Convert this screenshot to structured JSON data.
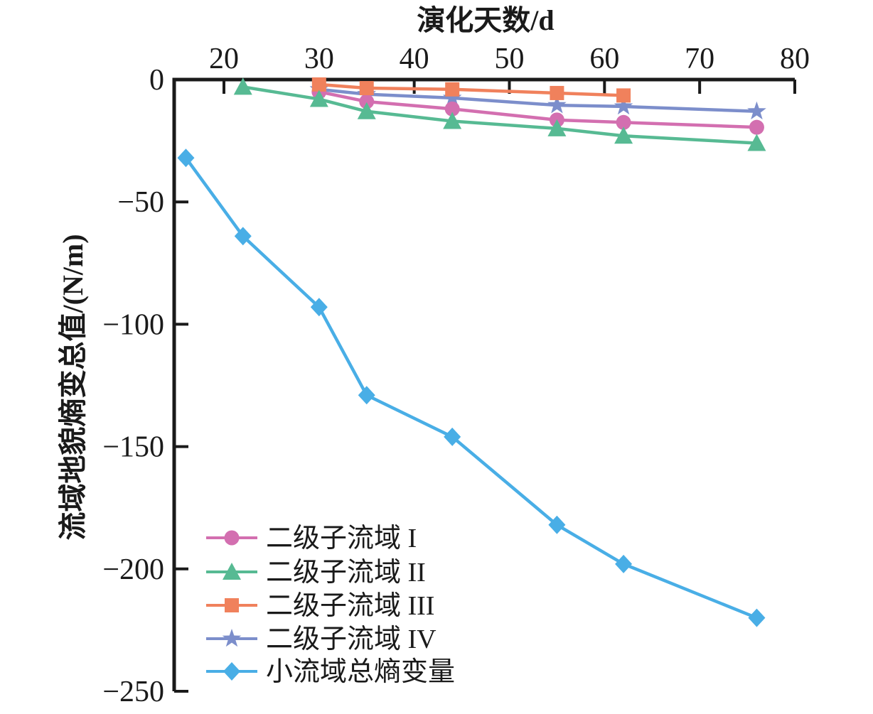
{
  "chart_data": {
    "type": "line",
    "xlabel": "演化天数/d",
    "ylabel": "流域地貌熵变总值/(N/m)",
    "x_axis_position": "top",
    "x_ticks": [
      20,
      30,
      40,
      50,
      60,
      70,
      80
    ],
    "x_tick_labels": [
      "20",
      "30",
      "40",
      "50",
      "60",
      "70",
      "80"
    ],
    "xlim": [
      14.8,
      80
    ],
    "y_ticks": [
      0,
      -50,
      -100,
      -150,
      -200,
      -250
    ],
    "y_tick_labels": [
      "0",
      "−50",
      "−100",
      "−150",
      "−200",
      "−250"
    ],
    "ylim": [
      -250,
      0
    ],
    "grid": false,
    "legend_position": "lower-left",
    "axis_color": "#1a1a1a",
    "background": "#ffffff",
    "series": [
      {
        "name": "二级子流域 I",
        "marker": "circle",
        "color": "#d36fb0",
        "x": [
          30,
          35,
          44,
          55,
          62,
          76
        ],
        "y": [
          -5,
          -9,
          -12,
          -16.5,
          -17.5,
          -19.5
        ]
      },
      {
        "name": "二级子流域 II",
        "marker": "triangle",
        "color": "#57ba93",
        "x": [
          22,
          30,
          35,
          44,
          55,
          62,
          76
        ],
        "y": [
          -3,
          -8,
          -13,
          -17,
          -20,
          -23,
          -26
        ]
      },
      {
        "name": "二级子流域 III",
        "marker": "square",
        "color": "#f0815c",
        "x": [
          30,
          35,
          44,
          55,
          62
        ],
        "y": [
          -2,
          -3.5,
          -4,
          -5.5,
          -6.5
        ]
      },
      {
        "name": "二级子流域 IV",
        "marker": "star",
        "color": "#7c8ecb",
        "x": [
          30,
          35,
          44,
          55,
          62,
          76
        ],
        "y": [
          -4,
          -6,
          -7.5,
          -10.5,
          -11,
          -13
        ]
      },
      {
        "name": "小流域总熵变量",
        "marker": "diamond",
        "color": "#49aee6",
        "x": [
          16,
          22,
          30,
          35,
          44,
          55,
          62,
          76
        ],
        "y": [
          -32,
          -64,
          -93,
          -129,
          -146,
          -182,
          -198,
          -220
        ]
      }
    ]
  }
}
